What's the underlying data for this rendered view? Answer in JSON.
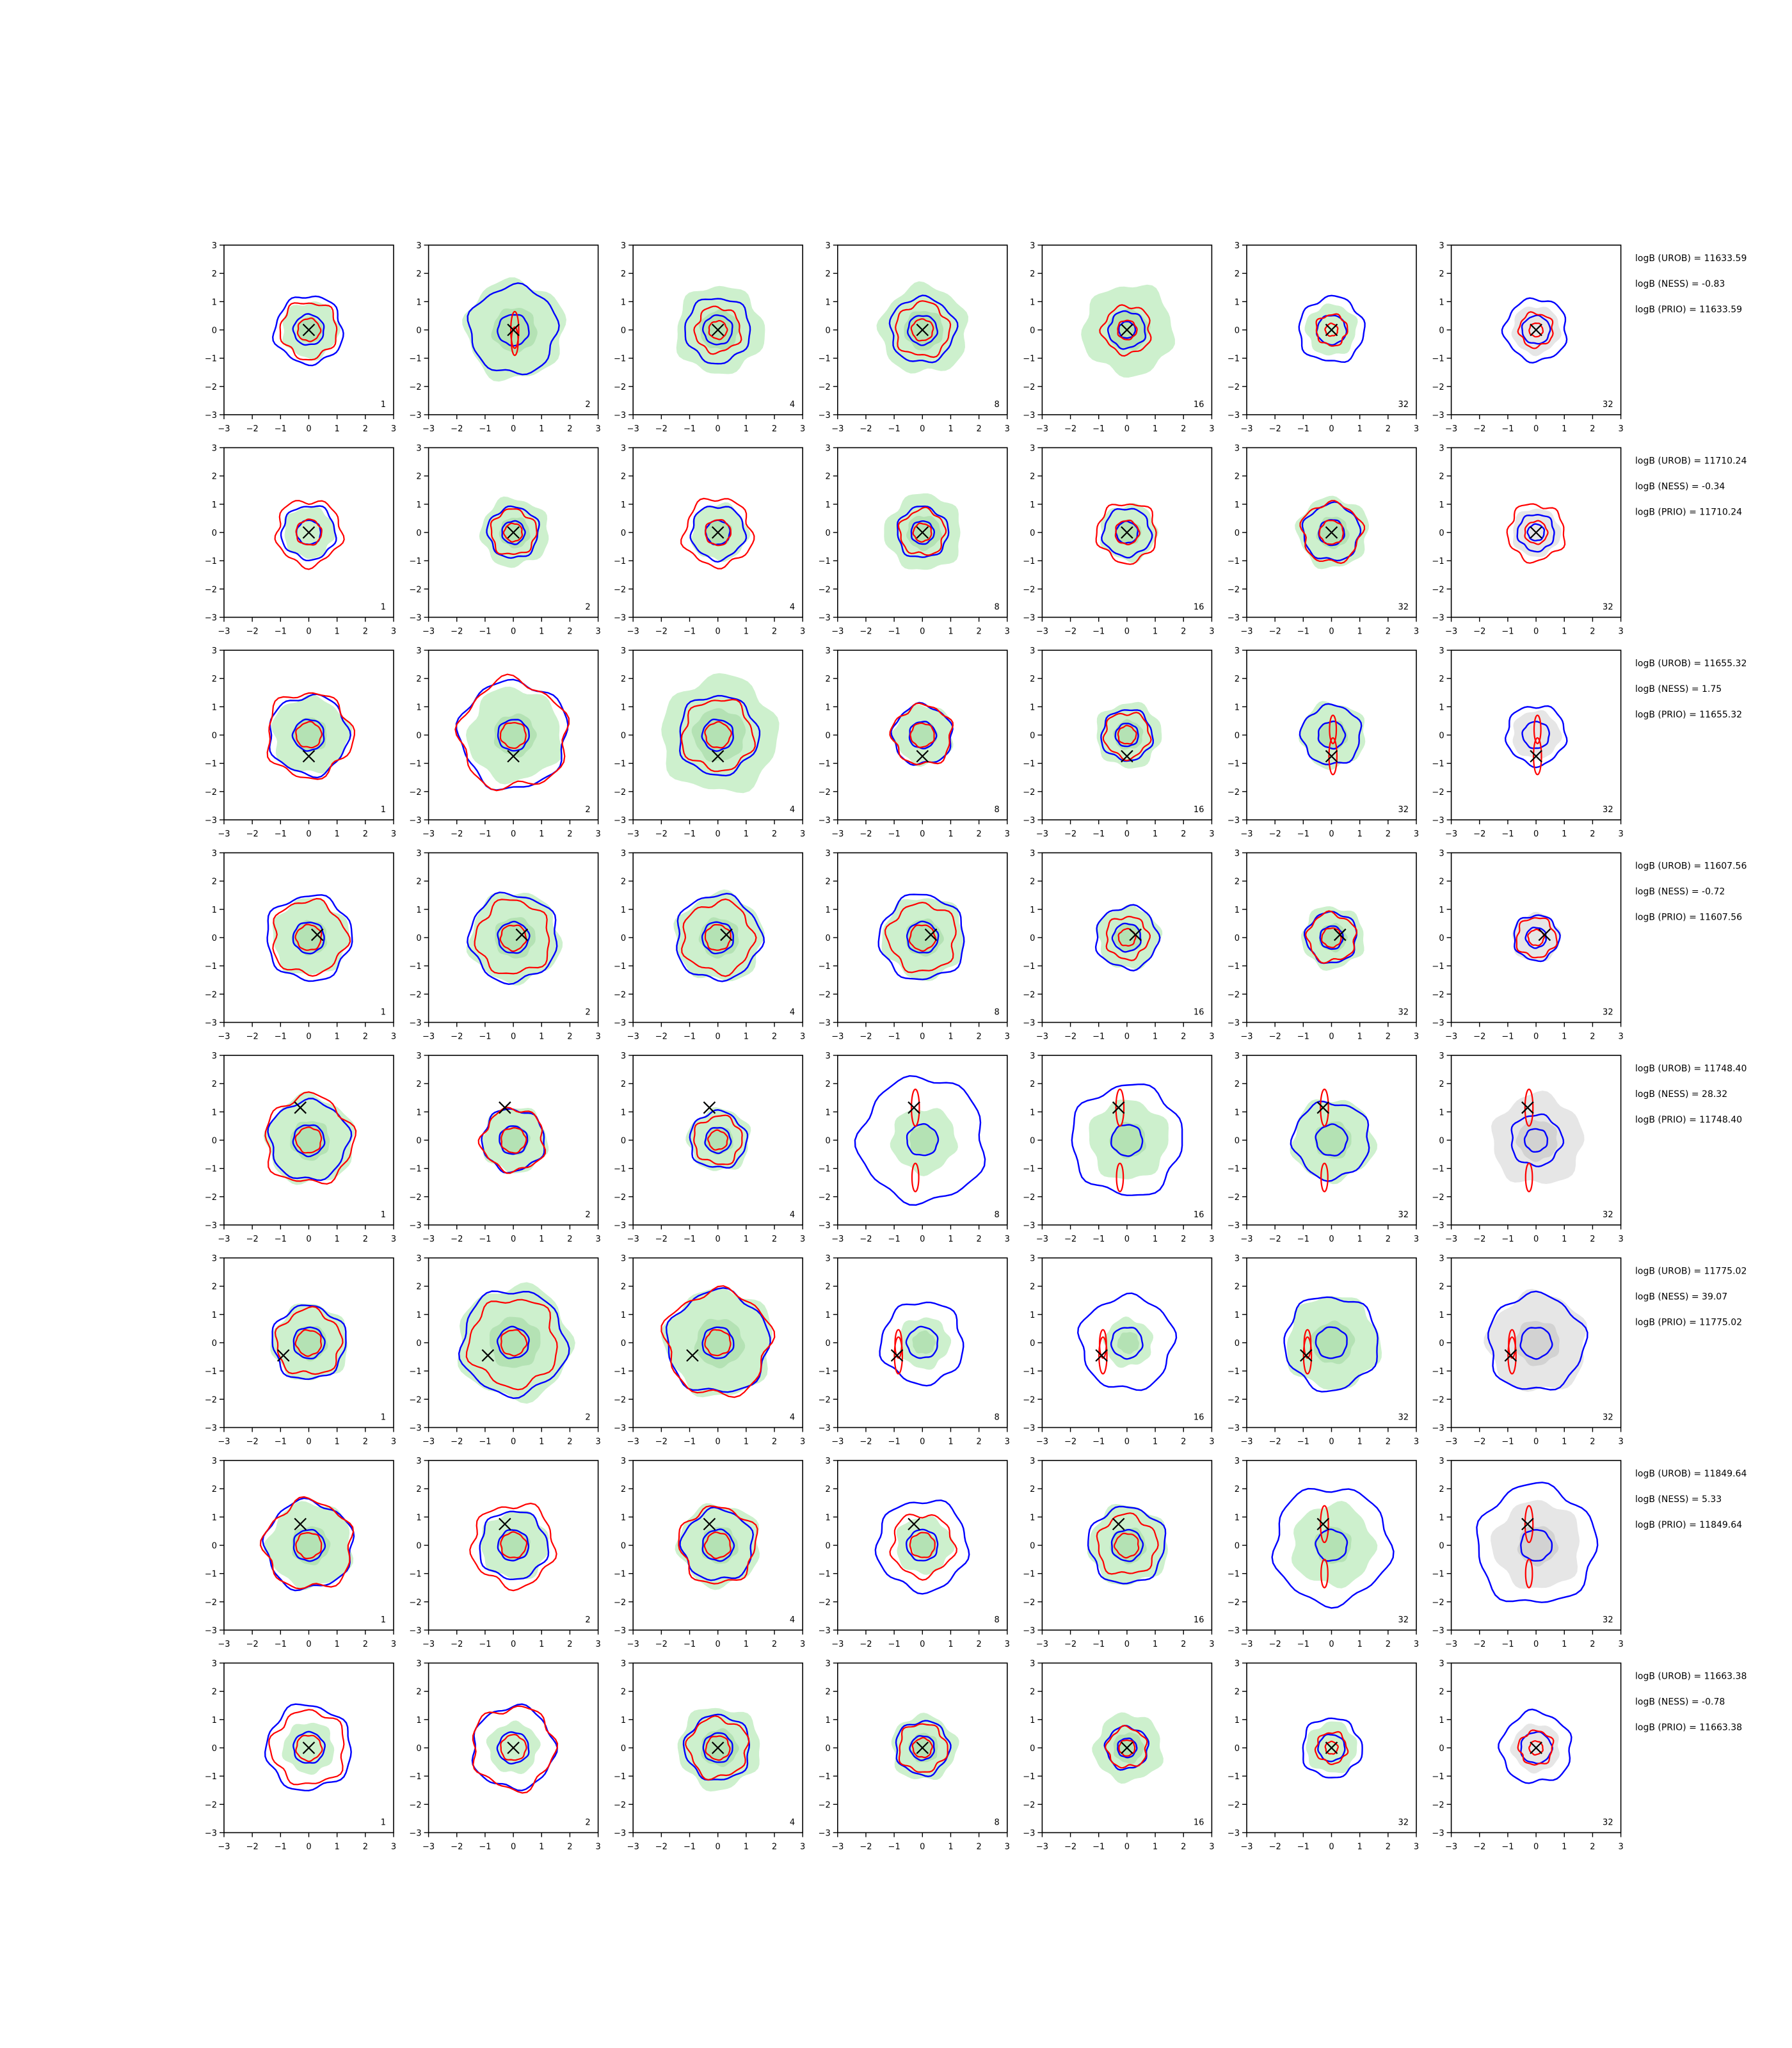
{
  "chart_data": {
    "type": "contour-grid",
    "rows": 8,
    "cols": 7,
    "xlim": [
      -3,
      3
    ],
    "ylim": [
      -3,
      3
    ],
    "ticks": [
      "−3",
      "−2",
      "−1",
      "0",
      "1",
      "2",
      "3"
    ],
    "tick_values": [
      -3,
      -2,
      -1,
      0,
      1,
      2,
      3
    ],
    "colors": {
      "filled": "#cdf0cd",
      "filled_inner": "#b4e2b4",
      "filled_prior": "#e6e6e6",
      "filled_prior_inner": "#d2d2d2",
      "contour_a": "#0000ff",
      "contour_b": "#ff0000",
      "marker": "#000000"
    },
    "rows_data": [
      {
        "marker": [
          0,
          0
        ],
        "panel_labels": [
          "1",
          "2",
          "4",
          "8",
          "16",
          "32",
          "32"
        ],
        "blue_outer": [
          1.2,
          1.55,
          1.15,
          1.15,
          0.65,
          1.15,
          1.1
        ],
        "red_outer": [
          1.0,
          0,
          0.8,
          0.95,
          0.85,
          0.55,
          0.6
        ],
        "green_size": [
          1.0,
          1.75,
          1.55,
          1.55,
          1.6,
          0,
          0
        ],
        "annotations": [
          "logB (UROB) = 11633.59",
          "logB (NESS) = -0.83",
          "logB (PRIO) = 11633.59"
        ]
      },
      {
        "marker": [
          0,
          0
        ],
        "panel_labels": [
          "1",
          "2",
          "4",
          "8",
          "16",
          "32",
          "32"
        ],
        "blue_outer": [
          0.95,
          0.9,
          0.95,
          0.9,
          0.85,
          1.0,
          0.65
        ],
        "red_outer": [
          1.15,
          0.8,
          1.2,
          0.8,
          1.05,
          1.05,
          1.0
        ],
        "green_size": [
          0,
          1.2,
          1.0,
          1.35,
          1.0,
          1.25,
          0
        ],
        "annotations": [
          "logB (UROB) = 11710.24",
          "logB (NESS) = -0.34",
          "logB (PRIO) = 11710.24"
        ]
      },
      {
        "marker": [
          0,
          -0.75
        ],
        "panel_labels": [
          "1",
          "2",
          "4",
          "8",
          "16",
          "32",
          "32"
        ],
        "blue_outer": [
          1.4,
          1.9,
          1.4,
          1.05,
          0.9,
          1.05,
          1.05
        ],
        "red_outer": [
          1.5,
          1.9,
          1.25,
          1.05,
          0.8,
          0,
          0
        ],
        "green_size": [
          1.35,
          1.65,
          2.05,
          1.05,
          1.15,
          1.15,
          0
        ],
        "annotations": [
          "logB (UROB) = 11655.32",
          "logB (NESS) = 1.75",
          "logB (PRIO) = 11655.32"
        ]
      },
      {
        "marker": [
          0.3,
          0.1
        ],
        "panel_labels": [
          "1",
          "2",
          "4",
          "8",
          "16",
          "32",
          "32"
        ],
        "blue_outer": [
          1.5,
          1.55,
          1.5,
          1.5,
          1.1,
          0.9,
          0.8
        ],
        "red_outer": [
          1.3,
          1.3,
          1.25,
          1.2,
          0.75,
          0.85,
          0.7
        ],
        "green_size": [
          1.35,
          1.6,
          1.55,
          1.45,
          1.1,
          1.1,
          0
        ],
        "annotations": [
          "logB (UROB) = 11607.56",
          "logB (NESS) = -0.72",
          "logB (PRIO) = 11607.56"
        ]
      },
      {
        "marker": [
          -0.3,
          1.15
        ],
        "panel_labels": [
          "1",
          "2",
          "4",
          "8",
          "16",
          "32",
          "32"
        ],
        "blue_outer": [
          1.4,
          1.1,
          1.0,
          2.2,
          1.95,
          1.35,
          0.9
        ],
        "red_outer": [
          1.55,
          1.1,
          0.85,
          0,
          0,
          0,
          0
        ],
        "green_size": [
          1.55,
          1.15,
          1.1,
          1.15,
          1.4,
          1.45,
          1.6
        ],
        "annotations": [
          "logB (UROB) = 11748.40",
          "logB (NESS) = 28.32",
          "logB (PRIO) = 11748.40"
        ]
      },
      {
        "marker": [
          -0.9,
          -0.45
        ],
        "panel_labels": [
          "1",
          "2",
          "4",
          "8",
          "16",
          "32",
          "32"
        ],
        "blue_outer": [
          1.3,
          1.85,
          1.8,
          1.45,
          1.65,
          1.65,
          1.7
        ],
        "red_outer": [
          1.15,
          1.55,
          1.85,
          0,
          0,
          0,
          0
        ],
        "green_size": [
          1.35,
          2.0,
          1.9,
          0.9,
          0.85,
          1.65,
          1.75
        ],
        "annotations": [
          "logB (UROB) = 11775.02",
          "logB (NESS) = 39.07",
          "logB (PRIO) = 11775.02"
        ]
      },
      {
        "marker": [
          -0.3,
          0.75
        ],
        "panel_labels": [
          "1",
          "2",
          "4",
          "8",
          "16",
          "32",
          "32"
        ],
        "blue_outer": [
          1.55,
          1.2,
          1.25,
          1.6,
          1.35,
          2.05,
          2.1
        ],
        "red_outer": [
          1.55,
          1.45,
          1.35,
          1.1,
          1.05,
          0,
          0
        ],
        "green_size": [
          1.5,
          1.2,
          1.45,
          1.0,
          1.4,
          1.45,
          1.55
        ],
        "annotations": [
          "logB (UROB) = 11849.64",
          "logB (NESS) = 5.33",
          "logB (PRIO) = 11849.64"
        ]
      },
      {
        "marker": [
          0,
          0
        ],
        "panel_labels": [
          "1",
          "2",
          "4",
          "8",
          "16",
          "32",
          "32"
        ],
        "blue_outer": [
          1.5,
          1.45,
          1.15,
          0.95,
          0.75,
          1.05,
          1.25
        ],
        "red_outer": [
          1.3,
          1.45,
          1.05,
          0.85,
          0.7,
          0.55,
          0.6
        ],
        "green_size": [
          0,
          0,
          1.45,
          1.15,
          1.2,
          0,
          0
        ],
        "annotations": [
          "logB (UROB) = 11663.38",
          "logB (NESS) = -0.78",
          "logB (PRIO) = 11663.38"
        ]
      }
    ]
  }
}
